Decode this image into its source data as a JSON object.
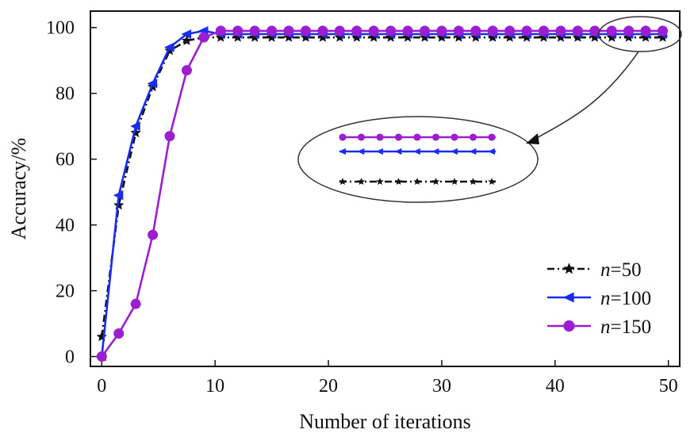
{
  "chart_data": {
    "type": "line",
    "title": "",
    "xlabel": "Number of iterations",
    "ylabel": "Accuracy/%",
    "xlim": [
      -1,
      51
    ],
    "ylim": [
      -3,
      105
    ],
    "xticks": [
      0,
      10,
      20,
      30,
      40,
      50
    ],
    "yticks": [
      0,
      20,
      40,
      60,
      80,
      100
    ],
    "grid": false,
    "legend_position": "bottom-right",
    "series": [
      {
        "name": "n=50",
        "legend_prefix": "n",
        "legend_suffix": "=50",
        "color": "#111111",
        "line_style": "dash-dot",
        "marker": "star",
        "x": [
          0,
          1.5,
          3,
          4.5,
          6,
          7.5,
          9,
          10.5,
          12,
          13.5,
          15,
          16.5,
          18,
          19.5,
          21,
          22.5,
          24,
          25.5,
          27,
          28.5,
          30,
          31.5,
          33,
          34.5,
          36,
          37.5,
          39,
          40.5,
          42,
          43.5,
          45,
          46.5,
          48,
          49.5
        ],
        "y": [
          6,
          46,
          68,
          82,
          93,
          96,
          97,
          97,
          97,
          97,
          97,
          97,
          97,
          97,
          97,
          97,
          97,
          97,
          97,
          97,
          97,
          97,
          97,
          97,
          97,
          97,
          97,
          97,
          97,
          97,
          97,
          97,
          97,
          97
        ]
      },
      {
        "name": "n=100",
        "legend_prefix": "n",
        "legend_suffix": "=100",
        "color": "#1a2cf0",
        "line_style": "solid",
        "marker": "triangle-left",
        "x": [
          0,
          1.5,
          3,
          4.5,
          6,
          7.5,
          9,
          10.5,
          12,
          13.5,
          15,
          16.5,
          18,
          19.5,
          21,
          22.5,
          24,
          25.5,
          27,
          28.5,
          30,
          31.5,
          33,
          34.5,
          36,
          37.5,
          39,
          40.5,
          42,
          43.5,
          45,
          46.5,
          48,
          49.5
        ],
        "y": [
          0,
          49,
          70,
          83,
          94,
          98,
          99,
          98,
          98,
          98,
          98,
          98,
          98,
          98,
          98,
          98,
          98,
          98,
          98,
          98,
          98,
          98,
          98,
          98,
          98,
          98,
          98,
          98,
          98,
          98,
          98,
          98,
          98,
          98
        ]
      },
      {
        "name": "n=150",
        "legend_prefix": "n",
        "legend_suffix": "=150",
        "color": "#9b1fd0",
        "line_style": "solid",
        "marker": "circle",
        "x": [
          0,
          1.5,
          3,
          4.5,
          6,
          7.5,
          9,
          10.5,
          12,
          13.5,
          15,
          16.5,
          18,
          19.5,
          21,
          22.5,
          24,
          25.5,
          27,
          28.5,
          30,
          31.5,
          33,
          34.5,
          36,
          37.5,
          39,
          40.5,
          42,
          43.5,
          45,
          46.5,
          48,
          49.5
        ],
        "y": [
          0,
          7,
          16,
          37,
          67,
          87,
          97,
          99,
          99,
          99,
          99,
          99,
          99,
          99,
          99,
          99,
          99,
          99,
          99,
          99,
          99,
          99,
          99,
          99,
          99,
          99,
          99,
          99,
          99,
          99,
          99,
          99,
          99,
          99
        ]
      }
    ],
    "annotations": [
      {
        "type": "zoom-inset",
        "target_x_range": [
          44,
          51
        ],
        "target_y": 98,
        "description_shape": "ellipse-with-arrow"
      }
    ]
  }
}
